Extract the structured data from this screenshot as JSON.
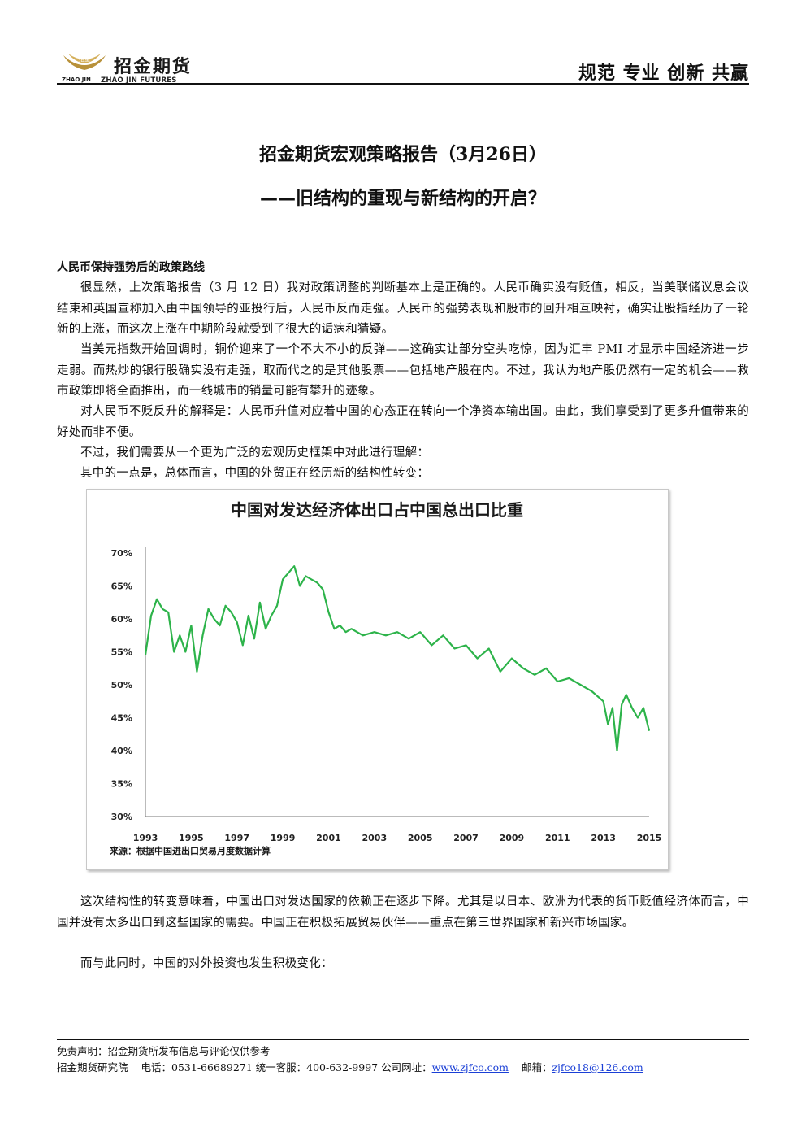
{
  "header": {
    "logo_badge": "招金",
    "logo_cn": "招金期货",
    "logo_sub_left": "ZHAO JIN",
    "logo_sub_right": "ZHAO JIN FUTURES",
    "slogan": "规范 专业 创新 共赢"
  },
  "title": {
    "line1": "招金期货宏观策略报告（3月26日）",
    "line2": "——旧结构的重现与新结构的开启？"
  },
  "section_heading": "人民币保持强势后的政策路线",
  "paragraphs": [
    "很显然，上次策略报告（3 月 12 日）我对政策调整的判断基本上是正确的。人民币确实没有贬值，相反，当美联储议息会议结束和英国宣称加入由中国领导的亚投行后，人民币反而走强。人民币的强势表现和股市的回升相互映衬，确实让股指经历了一轮新的上涨，而这次上涨在中期阶段就受到了很大的诟病和猜疑。",
    "当美元指数开始回调时，铜价迎来了一个不大不小的反弹——这确实让部分空头吃惊，因为汇丰 PMI 才显示中国经济进一步走弱。而热炒的银行股确实没有走强，取而代之的是其他股票——包括地产股在内。不过，我认为地产股仍然有一定的机会——救市政策即将全面推出，而一线城市的销量可能有攀升的迹象。",
    "对人民币不贬反升的解释是：人民币升值对应着中国的心态正在转向一个净资本输出国。由此，我们享受到了更多升值带来的好处而非不便。",
    "不过，我们需要从一个更为广泛的宏观历史框架中对此进行理解：",
    "其中的一点是，总体而言，中国的外贸正在经历新的结构性转变："
  ],
  "paragraphs_after": [
    "这次结构性的转变意味着，中国出口对发达国家的依赖正在逐步下降。尤其是以日本、欧洲为代表的货币贬值经济体而言，中国并没有太多出口到这些国家的需要。中国正在积极拓展贸易伙伴——重点在第三世界国家和新兴市场国家。",
    "而与此同时，中国的对外投资也发生积极变化："
  ],
  "chart_data": {
    "type": "line",
    "title": "中国对发达经济体出口占中国总出口比重",
    "source": "来源：根据中国进出口贸易月度数据计算",
    "x_tick_labels": [
      "1993",
      "1995",
      "1997",
      "1999",
      "2001",
      "2003",
      "2005",
      "2007",
      "2009",
      "2011",
      "2013",
      "2015"
    ],
    "y_tick_labels": [
      "70%",
      "65%",
      "60%",
      "55%",
      "50%",
      "45%",
      "40%",
      "35%",
      "30%"
    ],
    "xlim": [
      1993,
      2015
    ],
    "ylim": [
      30,
      70
    ],
    "y_unit": "%",
    "grid": false,
    "legend": "none",
    "line_color": "#2db34a",
    "series": [
      {
        "x": [
          1993.0,
          1993.25,
          1993.5,
          1993.75,
          1994.0,
          1994.25,
          1994.5,
          1994.75,
          1995.0,
          1995.25,
          1995.5,
          1995.75,
          1996.0,
          1996.25,
          1996.5,
          1996.75,
          1997.0,
          1997.25,
          1997.5,
          1997.75,
          1998.0,
          1998.25,
          1998.5,
          1998.75,
          1999.0,
          1999.25,
          1999.5,
          1999.75,
          2000.0,
          2000.25,
          2000.5,
          2000.75,
          2001.0,
          2001.25,
          2001.5,
          2001.75,
          2002.0,
          2002.5,
          2003.0,
          2003.5,
          2004.0,
          2004.5,
          2005.0,
          2005.5,
          2006.0,
          2006.5,
          2007.0,
          2007.5,
          2008.0,
          2008.5,
          2009.0,
          2009.5,
          2010.0,
          2010.5,
          2011.0,
          2011.5,
          2012.0,
          2012.5,
          2013.0,
          2013.2,
          2013.4,
          2013.6,
          2013.8,
          2014.0,
          2014.25,
          2014.5,
          2014.75,
          2015.0
        ],
        "y": [
          54.5,
          60.5,
          63.0,
          61.5,
          61.0,
          55.0,
          57.5,
          55.0,
          59.0,
          52.0,
          57.5,
          61.5,
          60.0,
          59.0,
          62.0,
          61.0,
          59.5,
          56.0,
          60.5,
          57.0,
          62.5,
          58.5,
          60.5,
          62.0,
          66.0,
          67.0,
          68.0,
          65.0,
          66.5,
          66.0,
          65.5,
          64.5,
          61.0,
          58.5,
          59.0,
          58.0,
          58.5,
          57.5,
          58.0,
          57.5,
          58.0,
          57.0,
          58.0,
          56.0,
          57.5,
          55.5,
          56.0,
          54.0,
          55.5,
          52.0,
          54.0,
          52.5,
          51.5,
          52.5,
          50.5,
          51.0,
          50.0,
          49.0,
          47.5,
          44.0,
          46.5,
          40.0,
          47.0,
          48.5,
          46.5,
          45.0,
          46.5,
          43.0
        ]
      }
    ]
  },
  "footer": {
    "disclaimer": "免责声明：招金期货所发布信息与评论仅供参考",
    "institute": "招金期货研究院",
    "phone": "电话：0531-66689271 统一客服：400-632-9997 公司网址：",
    "website": "www.zjfco.com",
    "email_label": "邮箱：",
    "email": "zjfco18@126.com"
  }
}
